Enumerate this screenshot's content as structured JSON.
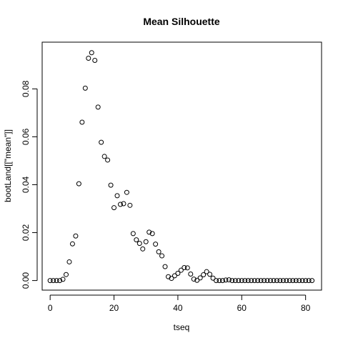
{
  "chart_data": {
    "type": "scatter",
    "title": "Mean Silhouette",
    "xlabel": "tseq",
    "ylabel": "bootLand[[\"mean\"]]",
    "xlim": [
      -2.5,
      85
    ],
    "ylim": [
      -0.004,
      0.0995
    ],
    "x_ticks": [
      0,
      20,
      40,
      60,
      80
    ],
    "x_tick_labels": [
      "0",
      "20",
      "40",
      "60",
      "80"
    ],
    "y_ticks": [
      0,
      0.02,
      0.04,
      0.06,
      0.08
    ],
    "y_tick_labels": [
      "0.00",
      "0.02",
      "0.04",
      "0.06",
      "0.08"
    ],
    "grid": false,
    "legend": "none",
    "point_style": "open-circle",
    "x": [
      0,
      1,
      2,
      3,
      4,
      5,
      6,
      7,
      8,
      9,
      10,
      11,
      12,
      13,
      14,
      15,
      16,
      17,
      18,
      19,
      20,
      21,
      22,
      23,
      24,
      25,
      26,
      27,
      28,
      29,
      30,
      31,
      32,
      33,
      34,
      35,
      36,
      37,
      38,
      39,
      40,
      41,
      42,
      43,
      44,
      45,
      46,
      47,
      48,
      49,
      50,
      51,
      52,
      53,
      54,
      55,
      56,
      57,
      58,
      59,
      60,
      61,
      62,
      63,
      64,
      65,
      66,
      67,
      68,
      69,
      70,
      71,
      72,
      73,
      74,
      75,
      76,
      77,
      78,
      79,
      80,
      81,
      82
    ],
    "y": [
      0,
      0,
      0,
      0,
      0.0005,
      0.0025,
      0.0078,
      0.0153,
      0.0186,
      0.0404,
      0.0661,
      0.0803,
      0.0928,
      0.0951,
      0.0919,
      0.0724,
      0.0577,
      0.0518,
      0.0503,
      0.0398,
      0.0304,
      0.0354,
      0.0318,
      0.0321,
      0.0368,
      0.0314,
      0.0196,
      0.017,
      0.0155,
      0.0132,
      0.0162,
      0.0202,
      0.0196,
      0.0152,
      0.012,
      0.0103,
      0.0058,
      0.0016,
      0.0009,
      0.002,
      0.003,
      0.0043,
      0.0054,
      0.0053,
      0.0027,
      0.0006,
      0.0001,
      0.0011,
      0.0024,
      0.0037,
      0.0026,
      0.001,
      0,
      0,
      0,
      0.0002,
      0.0003,
      0,
      0,
      0,
      0,
      0,
      0,
      0,
      0,
      0,
      0,
      0,
      0,
      0,
      0,
      0,
      0,
      0,
      0,
      0,
      0,
      0,
      0,
      0,
      0,
      0,
      0
    ]
  }
}
